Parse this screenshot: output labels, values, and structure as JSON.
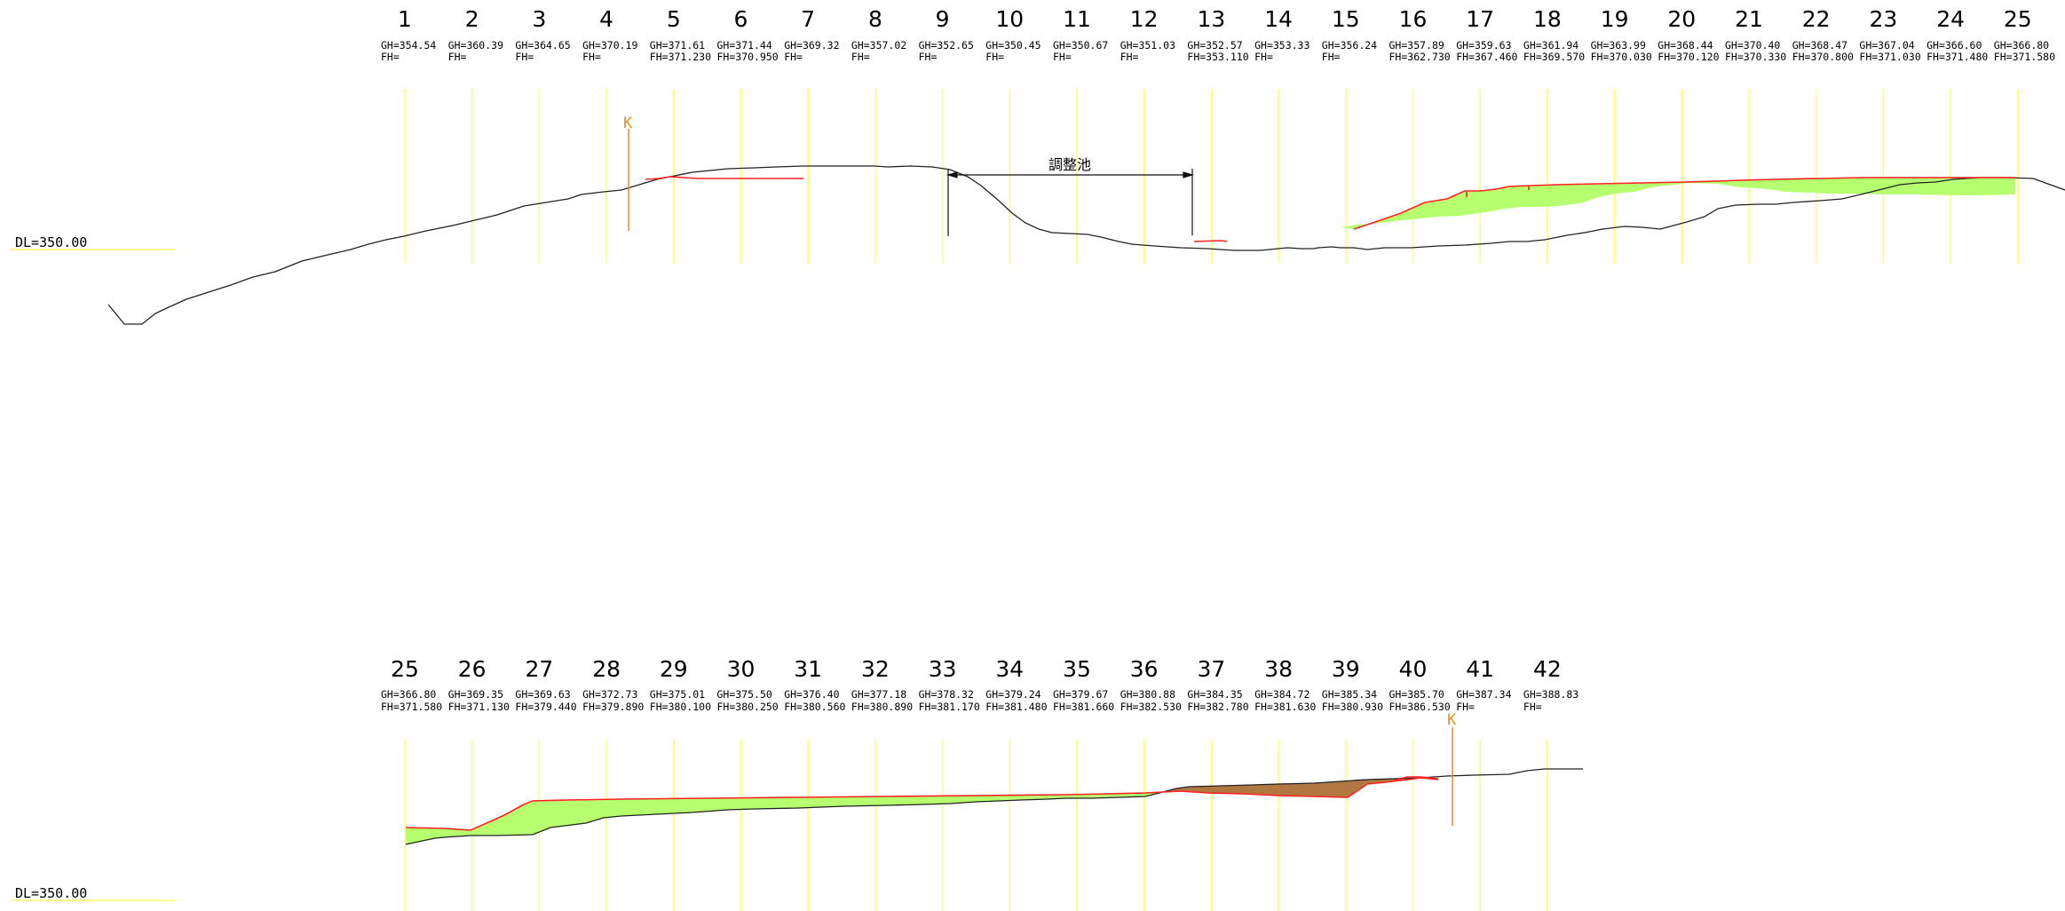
{
  "dl_label": "DL=350.00",
  "pond_label": "調整池",
  "marker_label": "K",
  "colors": {
    "station_line": "#ffff66",
    "ground": "#222222",
    "fill_area": "#b6ff6e",
    "cut_area": "#b07840",
    "design_line": "#ff2020",
    "marker": "#f08a1a"
  },
  "profiles": [
    {
      "stations": [
        {
          "no": "1",
          "gh": "GH=354.54",
          "fh": "FH="
        },
        {
          "no": "2",
          "gh": "GH=360.39",
          "fh": "FH="
        },
        {
          "no": "3",
          "gh": "GH=364.65",
          "fh": "FH="
        },
        {
          "no": "4",
          "gh": "GH=370.19",
          "fh": "FH="
        },
        {
          "no": "5",
          "gh": "GH=371.61",
          "fh": "FH=371.230"
        },
        {
          "no": "6",
          "gh": "GH=371.44",
          "fh": "FH=370.950"
        },
        {
          "no": "7",
          "gh": "GH=369.32",
          "fh": "FH="
        },
        {
          "no": "8",
          "gh": "GH=357.02",
          "fh": "FH="
        },
        {
          "no": "9",
          "gh": "GH=352.65",
          "fh": "FH="
        },
        {
          "no": "10",
          "gh": "GH=350.45",
          "fh": "FH="
        },
        {
          "no": "11",
          "gh": "GH=350.67",
          "fh": "FH="
        },
        {
          "no": "12",
          "gh": "GH=351.03",
          "fh": "FH="
        },
        {
          "no": "13",
          "gh": "GH=352.57",
          "fh": "FH=353.110"
        },
        {
          "no": "14",
          "gh": "GH=353.33",
          "fh": "FH="
        },
        {
          "no": "15",
          "gh": "GH=356.24",
          "fh": "FH="
        },
        {
          "no": "16",
          "gh": "GH=357.89",
          "fh": "FH=362.730"
        },
        {
          "no": "17",
          "gh": "GH=359.63",
          "fh": "FH=367.460"
        },
        {
          "no": "18",
          "gh": "GH=361.94",
          "fh": "FH=369.570"
        },
        {
          "no": "19",
          "gh": "GH=363.99",
          "fh": "FH=370.030"
        },
        {
          "no": "20",
          "gh": "GH=368.44",
          "fh": "FH=370.120"
        },
        {
          "no": "21",
          "gh": "GH=370.40",
          "fh": "FH=370.330"
        },
        {
          "no": "22",
          "gh": "GH=368.47",
          "fh": "FH=370.800"
        },
        {
          "no": "23",
          "gh": "GH=367.04",
          "fh": "FH=371.030"
        },
        {
          "no": "24",
          "gh": "GH=366.60",
          "fh": "FH=371.480"
        },
        {
          "no": "25",
          "gh": "GH=366.80",
          "fh": "FH=371.580"
        }
      ]
    },
    {
      "stations": [
        {
          "no": "25",
          "gh": "GH=366.80",
          "fh": "FH=371.580"
        },
        {
          "no": "26",
          "gh": "GH=369.35",
          "fh": "FH=371.130"
        },
        {
          "no": "27",
          "gh": "GH=369.63",
          "fh": "FH=379.440"
        },
        {
          "no": "28",
          "gh": "GH=372.73",
          "fh": "FH=379.890"
        },
        {
          "no": "29",
          "gh": "GH=375.01",
          "fh": "FH=380.100"
        },
        {
          "no": "30",
          "gh": "GH=375.50",
          "fh": "FH=380.250"
        },
        {
          "no": "31",
          "gh": "GH=376.40",
          "fh": "FH=380.560"
        },
        {
          "no": "32",
          "gh": "GH=377.18",
          "fh": "FH=380.890"
        },
        {
          "no": "33",
          "gh": "GH=378.32",
          "fh": "FH=381.170"
        },
        {
          "no": "34",
          "gh": "GH=379.24",
          "fh": "FH=381.480"
        },
        {
          "no": "35",
          "gh": "GH=379.67",
          "fh": "FH=381.660"
        },
        {
          "no": "36",
          "gh": "GH=380.88",
          "fh": "FH=382.530"
        },
        {
          "no": "37",
          "gh": "GH=384.35",
          "fh": "FH=382.780"
        },
        {
          "no": "38",
          "gh": "GH=384.72",
          "fh": "FH=381.630"
        },
        {
          "no": "39",
          "gh": "GH=385.34",
          "fh": "FH=380.930"
        },
        {
          "no": "40",
          "gh": "GH=385.70",
          "fh": "FH=386.530"
        },
        {
          "no": "41",
          "gh": "GH=387.34",
          "fh": "FH="
        },
        {
          "no": "42",
          "gh": "GH=388.83",
          "fh": "FH="
        }
      ]
    }
  ]
}
